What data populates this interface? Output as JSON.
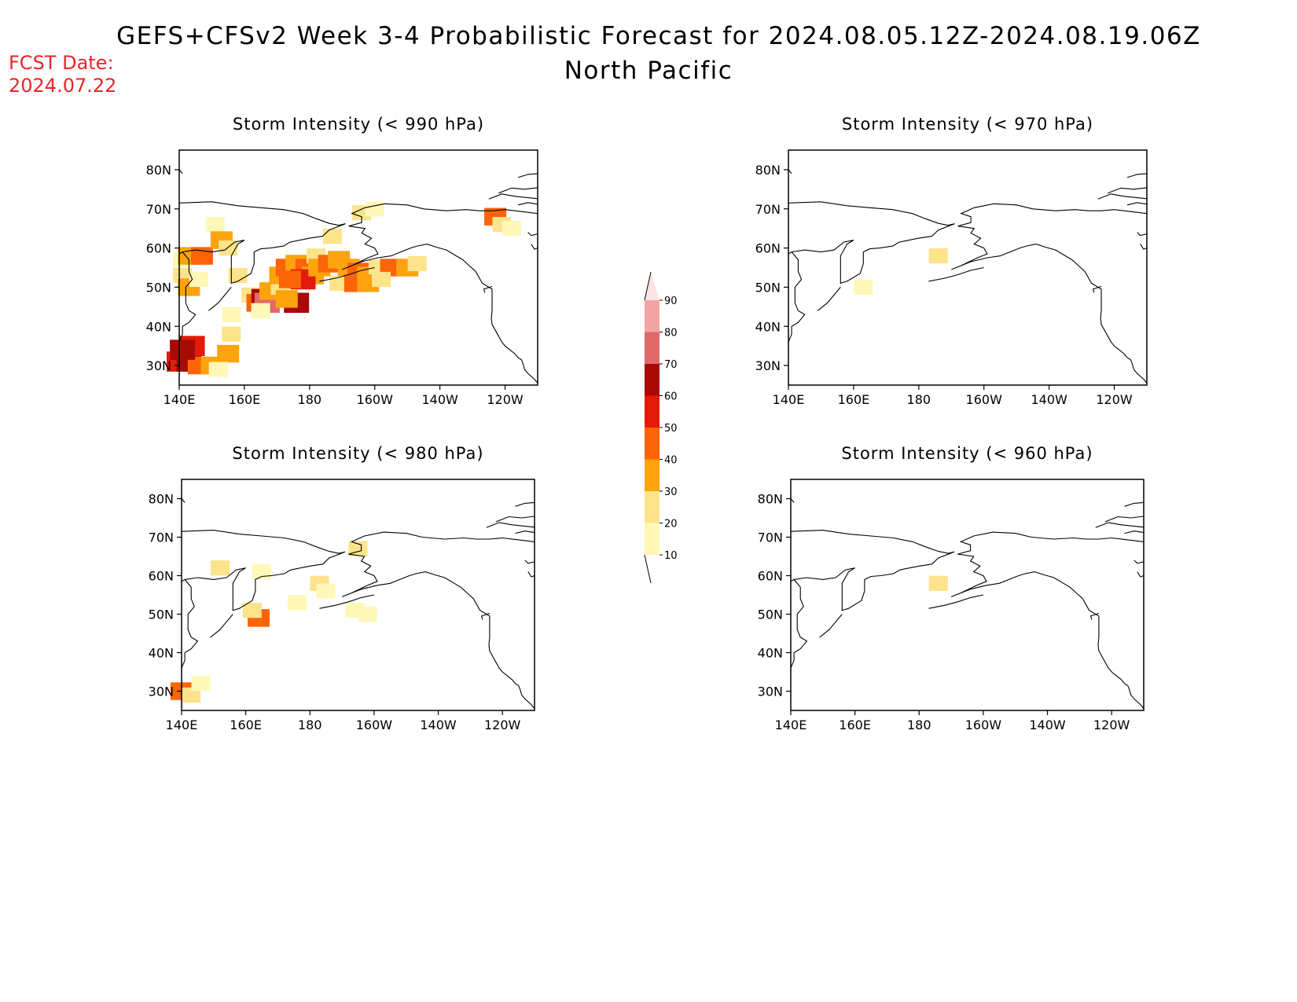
{
  "header": {
    "title_line1": "GEFS+CFSv2 Week 3-4 Probabilistic Forecast for 2024.08.05.12Z-2024.08.19.06Z",
    "title_line2": "North Pacific",
    "fcst_label": "FCST Date:",
    "fcst_date": "2024.07.22"
  },
  "axes": {
    "lon_ticks": [
      "140E",
      "160E",
      "180",
      "160W",
      "140W",
      "120W"
    ],
    "lat_ticks": [
      "80N",
      "70N",
      "60N",
      "50N",
      "40N",
      "30N"
    ]
  },
  "panels": [
    {
      "title": "Storm Intensity (< 990 hPa)"
    },
    {
      "title": "Storm Intensity (< 970 hPa)"
    },
    {
      "title": "Storm Intensity (< 980 hPa)"
    },
    {
      "title": "Storm Intensity (< 960 hPa)"
    }
  ],
  "colorbar": {
    "levels": [
      "10",
      "20",
      "30",
      "40",
      "50",
      "60",
      "70",
      "80",
      "90"
    ],
    "colors": [
      "#fff8b8",
      "#fde38a",
      "#fda30d",
      "#fc6408",
      "#e41a0a",
      "#a80b05",
      "#e06a6a",
      "#f4a3a3",
      "#fde3e3"
    ]
  }
}
